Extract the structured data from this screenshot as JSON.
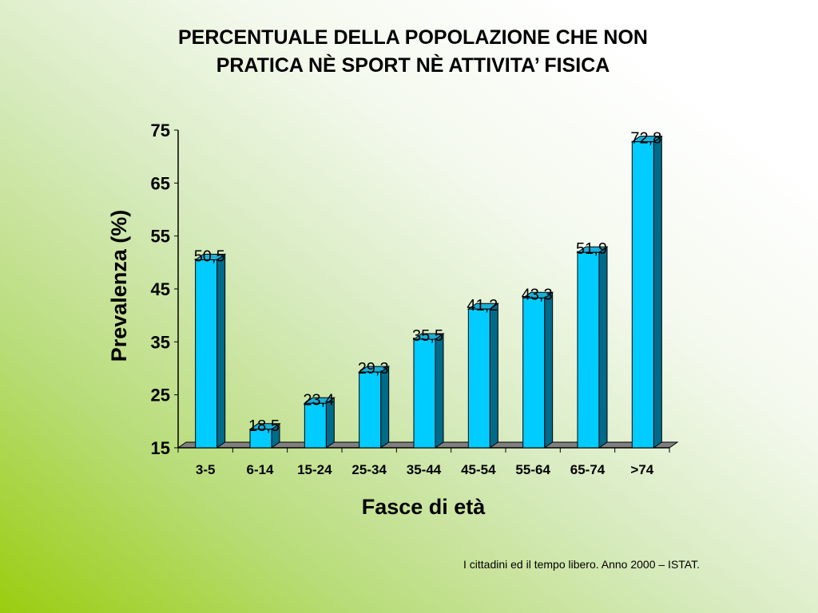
{
  "title_line1": "PERCENTUALE DELLA POPOLAZIONE CHE NON",
  "title_line2": "PRATICA NÈ SPORT NÈ ATTIVITA’ FISICA",
  "source": "I cittadini ed il tempo libero. Anno 2000 – ISTAT.",
  "chart_data": {
    "type": "bar",
    "title": "PERCENTUALE DELLA POPOLAZIONE CHE NON PRATICA NÈ SPORT NÈ ATTIVITA’ FISICA",
    "xlabel": "Fasce di età",
    "ylabel": "Prevalenza (%)",
    "categories": [
      "3-5",
      "6-14",
      "15-24",
      "25-34",
      "35-44",
      "45-54",
      "55-64",
      "65-74",
      ">74"
    ],
    "values": [
      50.5,
      18.5,
      23.4,
      29.3,
      35.5,
      41.2,
      43.3,
      51.9,
      72.8
    ],
    "data_labels": [
      "50,5",
      "18,5",
      "23,4",
      "29,3",
      "35,5",
      "41,2",
      "43,3",
      "51,9",
      "72,8"
    ],
    "ylim": [
      15,
      75
    ],
    "yticks": [
      15,
      25,
      35,
      45,
      55,
      65,
      75
    ],
    "grid": false,
    "bar_color": "#00ccff",
    "bar_side_color": "#006a8a",
    "floor_color": "#808080"
  }
}
